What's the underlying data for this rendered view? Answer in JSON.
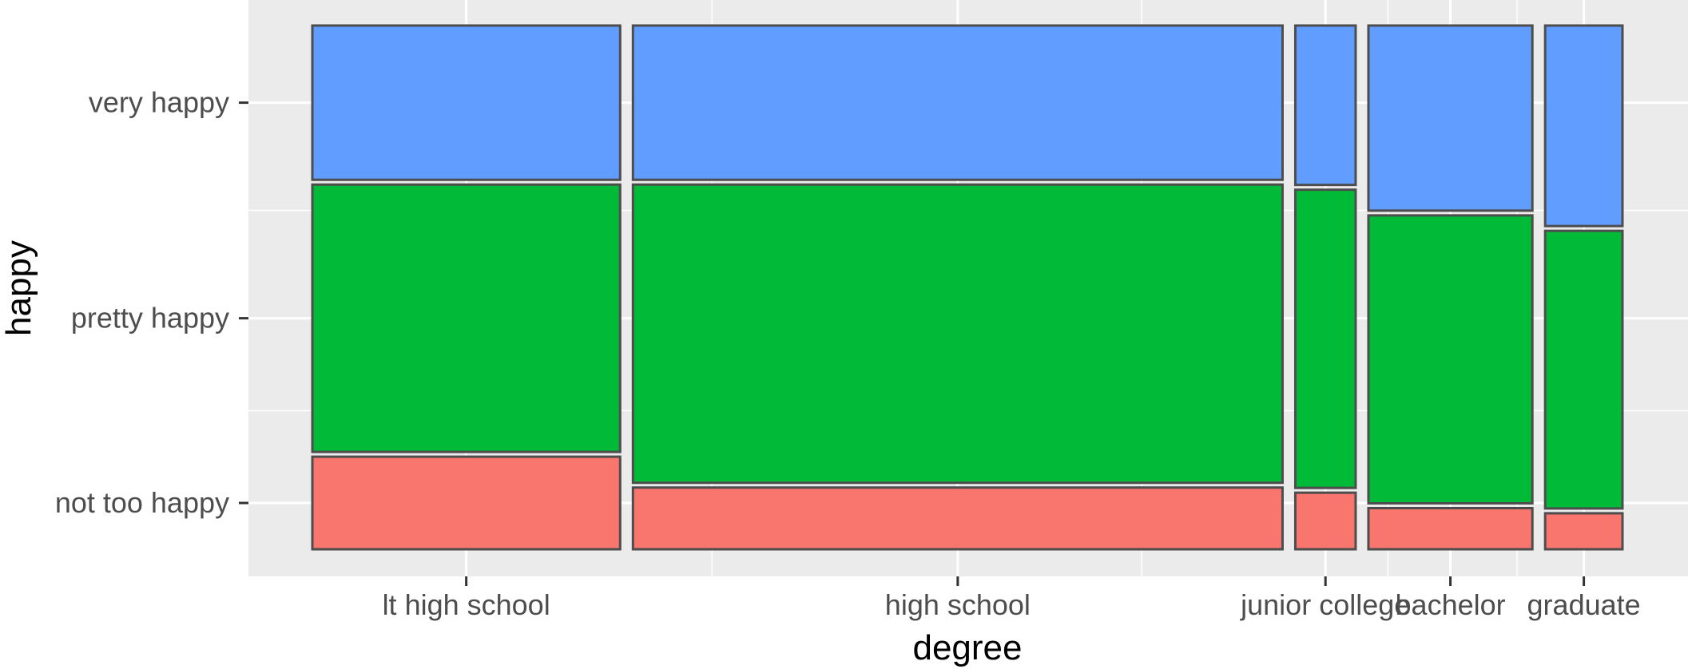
{
  "chart_data": {
    "type": "mosaic",
    "xlabel": "degree",
    "ylabel": "happy",
    "categories": [
      "lt high school",
      "high school",
      "junior college",
      "bachelor",
      "graduate"
    ],
    "category_proportions": [
      0.199,
      0.42,
      0.039,
      0.106,
      0.05
    ],
    "series": [
      {
        "name": "not too happy",
        "color": "#F8766D",
        "values": [
          0.18,
          0.12,
          0.11,
          0.08,
          0.07
        ]
      },
      {
        "name": "pretty happy",
        "color": "#00BA38",
        "values": [
          0.52,
          0.58,
          0.58,
          0.56,
          0.54
        ]
      },
      {
        "name": "very happy",
        "color": "#619CFF",
        "values": [
          0.3,
          0.3,
          0.31,
          0.36,
          0.39
        ]
      }
    ],
    "grid": true,
    "legend": "none"
  }
}
